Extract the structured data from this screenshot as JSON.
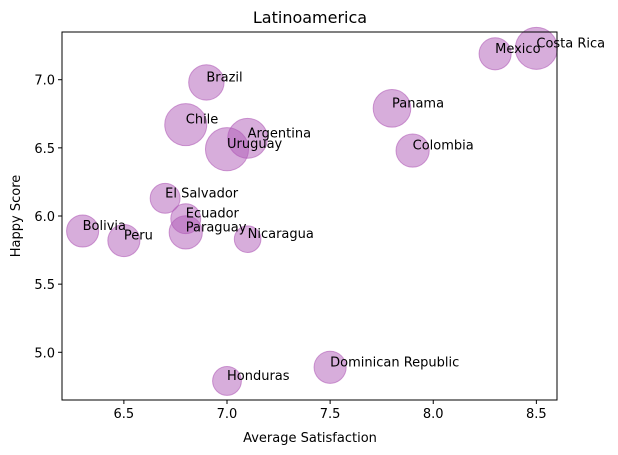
{
  "chart_data": {
    "type": "scatter",
    "title": "Latinoamerica",
    "xlabel": "Average Satisfaction",
    "ylabel": "Happy Score",
    "xlim": [
      6.2,
      8.6
    ],
    "ylim": [
      4.65,
      7.35
    ],
    "x_ticks": [
      "6.5",
      "7.0",
      "7.5",
      "8.0",
      "8.5"
    ],
    "y_ticks": [
      "5.0",
      "5.5",
      "6.0",
      "6.5",
      "7.0"
    ],
    "grid": false,
    "marker_color": "#b05cb8",
    "marker_alpha": 0.5,
    "points": [
      {
        "label": "Costa Rica",
        "x": 8.5,
        "y": 7.23,
        "size": 1.0
      },
      {
        "label": "Mexico",
        "x": 8.3,
        "y": 7.19,
        "size": 0.55
      },
      {
        "label": "Brazil",
        "x": 6.9,
        "y": 6.98,
        "size": 0.7
      },
      {
        "label": "Panama",
        "x": 7.8,
        "y": 6.79,
        "size": 0.8
      },
      {
        "label": "Chile",
        "x": 6.8,
        "y": 6.67,
        "size": 1.0
      },
      {
        "label": "Argentina",
        "x": 7.1,
        "y": 6.57,
        "size": 0.9
      },
      {
        "label": "Uruguay",
        "x": 7.0,
        "y": 6.49,
        "size": 1.05
      },
      {
        "label": "Colombia",
        "x": 7.9,
        "y": 6.48,
        "size": 0.6
      },
      {
        "label": "El Salvador",
        "x": 6.7,
        "y": 6.13,
        "size": 0.45
      },
      {
        "label": "Ecuador",
        "x": 6.8,
        "y": 5.98,
        "size": 0.45
      },
      {
        "label": "Bolivia",
        "x": 6.3,
        "y": 5.89,
        "size": 0.55
      },
      {
        "label": "Paraguay",
        "x": 6.8,
        "y": 5.88,
        "size": 0.6
      },
      {
        "label": "Peru",
        "x": 6.5,
        "y": 5.82,
        "size": 0.55
      },
      {
        "label": "Nicaragua",
        "x": 7.1,
        "y": 5.83,
        "size": 0.3
      },
      {
        "label": "Dominican Republic",
        "x": 7.5,
        "y": 4.89,
        "size": 0.55
      },
      {
        "label": "Honduras",
        "x": 7.0,
        "y": 4.79,
        "size": 0.4
      }
    ]
  }
}
